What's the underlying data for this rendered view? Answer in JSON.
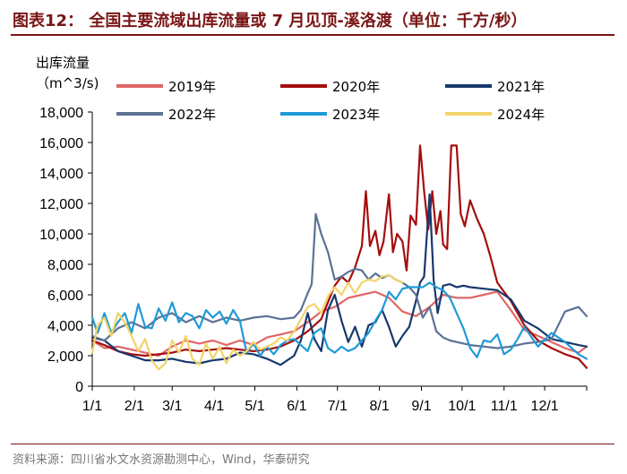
{
  "chart_data": {
    "type": "line",
    "title": "图表12：  全国主要流域出库流量或 7 月见顶-溪洛渡（单位：千方/秒）",
    "ylabel_line1": "出库流量",
    "ylabel_line2": "（m^3/s)",
    "ylim": [
      0,
      18000
    ],
    "yticks": [
      0,
      2000,
      4000,
      6000,
      8000,
      10000,
      12000,
      14000,
      16000,
      18000
    ],
    "ytick_labels": [
      "0",
      "2,000",
      "4,000",
      "6,000",
      "8,000",
      "10,000",
      "12,000",
      "14,000",
      "16,000",
      "18,000"
    ],
    "x_unit": "day of year",
    "xlim": [
      1,
      366
    ],
    "xticks": [
      1,
      32,
      60,
      91,
      121,
      152,
      182,
      213,
      244,
      274,
      305,
      335
    ],
    "xtick_labels": [
      "1/1",
      "2/1",
      "3/1",
      "4/1",
      "5/1",
      "6/1",
      "7/1",
      "8/1",
      "9/1",
      "10/1",
      "11/1",
      "12/1"
    ],
    "source": "资料来源：四川省水文水资源勘测中心，Wind，华泰研究",
    "series": [
      {
        "name": "2019年",
        "color": "#e06666",
        "x": [
          1,
          10,
          20,
          30,
          40,
          50,
          60,
          70,
          80,
          90,
          100,
          110,
          120,
          130,
          140,
          150,
          160,
          170,
          180,
          190,
          200,
          210,
          220,
          230,
          240,
          250,
          260,
          270,
          280,
          290,
          300,
          310,
          320,
          330,
          340,
          350,
          360,
          366
        ],
        "y": [
          3000,
          2500,
          2600,
          2400,
          2200,
          2000,
          2600,
          3000,
          2800,
          3000,
          2700,
          3000,
          2700,
          3200,
          3400,
          3600,
          4200,
          4900,
          5200,
          5800,
          6000,
          6200,
          5800,
          4900,
          4600,
          5200,
          6000,
          5800,
          5800,
          6000,
          6200,
          5000,
          3700,
          3300,
          2900,
          2500,
          2200,
          2600
        ]
      },
      {
        "name": "2020年",
        "color": "#a50d0d",
        "x": [
          1,
          10,
          20,
          30,
          40,
          50,
          60,
          70,
          80,
          90,
          100,
          110,
          120,
          130,
          140,
          150,
          160,
          170,
          175,
          180,
          185,
          190,
          195,
          200,
          203,
          206,
          210,
          213,
          216,
          220,
          223,
          226,
          230,
          233,
          236,
          240,
          243,
          246,
          249,
          252,
          255,
          258,
          260,
          263,
          266,
          270,
          273,
          276,
          280,
          285,
          290,
          295,
          300,
          305,
          310,
          320,
          330,
          340,
          350,
          360,
          366
        ],
        "y": [
          3000,
          2700,
          2300,
          2100,
          2000,
          2100,
          2200,
          2400,
          2300,
          2400,
          2500,
          2400,
          2300,
          2400,
          2600,
          3000,
          3600,
          4400,
          5500,
          6600,
          7200,
          6800,
          7800,
          9200,
          12800,
          9200,
          10200,
          8600,
          9500,
          12600,
          8800,
          10000,
          9500,
          7600,
          11200,
          10600,
          15800,
          12800,
          10300,
          12800,
          10000,
          11500,
          9300,
          9000,
          15800,
          15800,
          11300,
          10500,
          12200,
          11000,
          10000,
          8500,
          6800,
          6200,
          5600,
          4000,
          3000,
          2500,
          2100,
          1800,
          1200
        ]
      },
      {
        "name": "2021年",
        "color": "#17386e",
        "x": [
          1,
          10,
          20,
          30,
          40,
          50,
          60,
          70,
          80,
          90,
          100,
          110,
          120,
          130,
          140,
          150,
          155,
          160,
          165,
          170,
          175,
          180,
          185,
          190,
          195,
          200,
          205,
          210,
          215,
          220,
          225,
          230,
          235,
          240,
          243,
          246,
          250,
          253,
          256,
          260,
          265,
          270,
          275,
          280,
          290,
          300,
          310,
          320,
          330,
          340,
          350,
          360,
          366
        ],
        "y": [
          3200,
          3000,
          2300,
          2000,
          1700,
          1700,
          1800,
          1600,
          1500,
          1700,
          1800,
          2200,
          2100,
          1800,
          1400,
          2000,
          3000,
          4800,
          3100,
          2300,
          5000,
          6000,
          4300,
          2900,
          3900,
          2600,
          4000,
          4200,
          5000,
          3900,
          2600,
          3300,
          3900,
          5600,
          6800,
          7200,
          12600,
          7000,
          4800,
          6600,
          6700,
          6500,
          6600,
          6500,
          6400,
          6300,
          5700,
          4300,
          3800,
          3100,
          2900,
          2700,
          2600
        ]
      },
      {
        "name": "2022年",
        "color": "#5b7295",
        "x": [
          1,
          10,
          20,
          30,
          40,
          50,
          60,
          70,
          80,
          90,
          100,
          110,
          120,
          130,
          140,
          150,
          155,
          160,
          163,
          166,
          170,
          175,
          180,
          185,
          190,
          195,
          200,
          205,
          210,
          215,
          220,
          225,
          230,
          235,
          240,
          245,
          250,
          255,
          260,
          265,
          270,
          280,
          290,
          300,
          310,
          320,
          330,
          340,
          350,
          360,
          366
        ],
        "y": [
          3300,
          3000,
          3800,
          4200,
          3800,
          4500,
          4800,
          4200,
          4600,
          4200,
          4500,
          4300,
          4500,
          4600,
          4400,
          4500,
          5000,
          6100,
          6700,
          11300,
          10000,
          8800,
          7000,
          7200,
          7500,
          7700,
          7600,
          7000,
          7400,
          7100,
          7300,
          7000,
          6800,
          6500,
          6000,
          4500,
          5200,
          3600,
          3200,
          3000,
          2900,
          2700,
          2600,
          2500,
          2600,
          2800,
          2900,
          3100,
          4900,
          5200,
          4600
        ]
      },
      {
        "name": "2023年",
        "color": "#1f9ad6",
        "x": [
          1,
          5,
          10,
          15,
          20,
          25,
          30,
          35,
          40,
          45,
          50,
          55,
          60,
          65,
          70,
          75,
          80,
          85,
          90,
          95,
          100,
          105,
          110,
          115,
          120,
          125,
          130,
          135,
          140,
          145,
          150,
          155,
          160,
          165,
          170,
          175,
          180,
          185,
          190,
          195,
          200,
          205,
          210,
          215,
          220,
          225,
          230,
          235,
          240,
          245,
          250,
          255,
          260,
          265,
          270,
          275,
          280,
          285,
          290,
          295,
          300,
          305,
          310,
          315,
          320,
          330,
          340,
          350,
          360,
          366
        ],
        "y": [
          4500,
          3500,
          4800,
          3500,
          4200,
          4800,
          3500,
          5400,
          3900,
          3800,
          5100,
          4300,
          5500,
          4200,
          4800,
          4600,
          3800,
          5000,
          4500,
          4900,
          4100,
          5000,
          4300,
          2200,
          2800,
          2000,
          2600,
          2100,
          2700,
          3000,
          3100,
          2700,
          2300,
          3500,
          3800,
          2500,
          2200,
          2600,
          2300,
          2500,
          3000,
          3500,
          4300,
          5000,
          6200,
          5700,
          6400,
          6500,
          6500,
          6500,
          6800,
          6500,
          6300,
          5800,
          4800,
          3800,
          2500,
          1900,
          3000,
          2900,
          3400,
          2100,
          2400,
          3100,
          3900,
          2600,
          3500,
          2900,
          2100,
          1800
        ]
      },
      {
        "name": "2024年",
        "color": "#f3d46a",
        "x": [
          1,
          5,
          10,
          15,
          20,
          25,
          30,
          35,
          40,
          45,
          50,
          55,
          60,
          65,
          70,
          75,
          80,
          85,
          90,
          95,
          100,
          105,
          110,
          115,
          120,
          125,
          130,
          135,
          140,
          145,
          150,
          155,
          160,
          165,
          170,
          175,
          180,
          185,
          190,
          195,
          200,
          205,
          210,
          215,
          220,
          225,
          230
        ],
        "y": [
          2200,
          4000,
          4500,
          3300,
          4800,
          4200,
          3300,
          2300,
          3100,
          1700,
          1100,
          1500,
          3000,
          2200,
          3300,
          1800,
          1400,
          2800,
          1800,
          2600,
          1500,
          2400,
          2000,
          2300,
          2900,
          2400,
          2600,
          2800,
          3200,
          3000,
          3600,
          4400,
          5200,
          5400,
          4800,
          5900,
          6500,
          6000,
          6800,
          6100,
          6800,
          7000,
          6900,
          7200,
          7300,
          7000,
          6800
        ]
      }
    ]
  }
}
